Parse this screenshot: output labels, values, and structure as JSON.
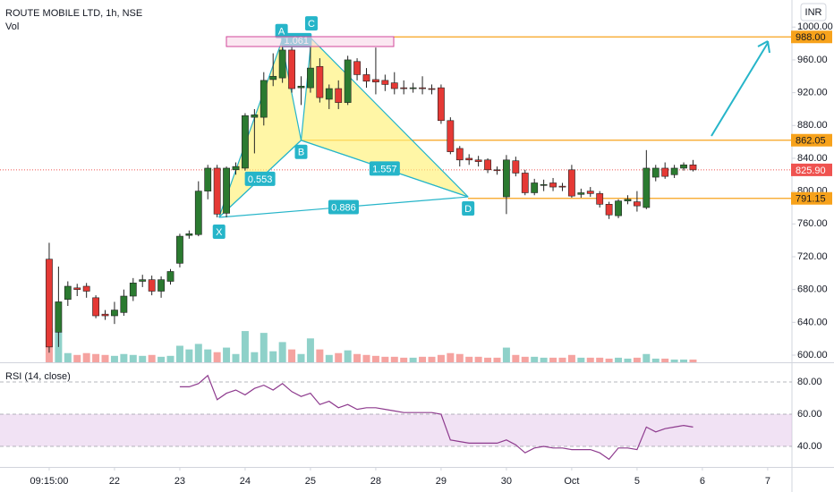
{
  "chart_data": {
    "type": "candlestick",
    "title": "ROUTE MOBILE LTD, 1h, NSE",
    "currency": "INR",
    "volume_label": "Vol",
    "up_color": "#2b7a30",
    "down_color": "#e53935",
    "volume_up_color": "#8fd1c9",
    "volume_down_color": "#f5a3a0",
    "open": [
      717,
      628,
      668,
      682,
      684,
      670,
      650,
      648,
      652,
      672,
      690,
      692,
      678,
      690,
      712,
      746,
      747,
      800,
      828,
      773,
      826,
      828,
      890,
      890,
      936,
      938,
      972,
      926,
      926,
      952,
      912,
      925,
      908,
      958,
      942,
      936,
      935,
      932,
      926,
      925,
      926,
      925,
      926,
      886,
      852,
      840,
      838,
      838,
      826,
      793,
      837,
      822,
      798,
      808,
      810,
      806,
      826,
      796,
      800,
      797,
      784,
      770,
      788,
      787,
      780,
      817,
      828,
      820,
      828,
      832
    ],
    "high": [
      737,
      708,
      690,
      687,
      688,
      673,
      655,
      665,
      680,
      694,
      698,
      697,
      696,
      705,
      748,
      752,
      812,
      832,
      832,
      830,
      835,
      895,
      900,
      945,
      968,
      985,
      985,
      940,
      992,
      962,
      930,
      935,
      965,
      962,
      950,
      975,
      942,
      945,
      935,
      932,
      940,
      930,
      930,
      890,
      855,
      845,
      843,
      840,
      830,
      844,
      842,
      826,
      815,
      814,
      816,
      810,
      832,
      803,
      805,
      800,
      787,
      790,
      795,
      800,
      850,
      832,
      835,
      832,
      835,
      838
    ],
    "low": [
      603,
      610,
      660,
      672,
      670,
      645,
      643,
      638,
      648,
      666,
      683,
      673,
      670,
      686,
      707,
      742,
      745,
      790,
      768,
      768,
      820,
      825,
      846,
      880,
      928,
      932,
      920,
      905,
      920,
      908,
      900,
      900,
      905,
      935,
      926,
      918,
      922,
      918,
      918,
      920,
      918,
      918,
      882,
      845,
      830,
      832,
      830,
      822,
      820,
      772,
      818,
      795,
      795,
      800,
      800,
      800,
      792,
      792,
      793,
      780,
      766,
      767,
      784,
      775,
      778,
      812,
      815,
      816,
      825,
      824
    ],
    "close": [
      610,
      665,
      684,
      680,
      678,
      648,
      648,
      655,
      672,
      688,
      692,
      678,
      692,
      702,
      745,
      748,
      800,
      828,
      772,
      828,
      830,
      892,
      893,
      935,
      940,
      972,
      925,
      928,
      950,
      914,
      925,
      908,
      960,
      942,
      934,
      933,
      930,
      925,
      925,
      926,
      925,
      924,
      886,
      848,
      838,
      838,
      836,
      826,
      825,
      838,
      822,
      798,
      810,
      808,
      805,
      805,
      794,
      798,
      797,
      784,
      771,
      788,
      790,
      782,
      828,
      828,
      818,
      828,
      832,
      825.9
    ],
    "volume": [
      37,
      33,
      10,
      8,
      10,
      9,
      8,
      7,
      9,
      8,
      7,
      8,
      6,
      7,
      18,
      14,
      20,
      14,
      11,
      16,
      9,
      34,
      11,
      32,
      12,
      22,
      14,
      9,
      26,
      14,
      8,
      10,
      13,
      9,
      8,
      7,
      6,
      6,
      5,
      5,
      6,
      6,
      8,
      10,
      9,
      6,
      6,
      5,
      5,
      16,
      8,
      6,
      6,
      5,
      5,
      5,
      8,
      5,
      5,
      5,
      4,
      5,
      4,
      5,
      9,
      4,
      4,
      3,
      3,
      3
    ],
    "ylim": [
      591.3,
      1033
    ],
    "yticks": [
      {
        "value": 600,
        "label": "600.00"
      },
      {
        "value": 640,
        "label": "640.00"
      },
      {
        "value": 680,
        "label": "680.00"
      },
      {
        "value": 720,
        "label": "720.00"
      },
      {
        "value": 760,
        "label": "760.00"
      },
      {
        "value": 800,
        "label": "800.00"
      },
      {
        "value": 840,
        "label": "840.00"
      },
      {
        "value": 880,
        "label": "880.00"
      },
      {
        "value": 920,
        "label": "920.00"
      },
      {
        "value": 960,
        "label": "960.00"
      },
      {
        "value": 1000,
        "label": "1000.00"
      }
    ],
    "xlim": [
      -5.27,
      79.6
    ],
    "xticks": [
      {
        "value": 0,
        "label": "09:15:00"
      },
      {
        "value": 7,
        "label": "22"
      },
      {
        "value": 14,
        "label": "23"
      },
      {
        "value": 21,
        "label": "24"
      },
      {
        "value": 28,
        "label": "25"
      },
      {
        "value": 35,
        "label": "28"
      },
      {
        "value": 42,
        "label": "29"
      },
      {
        "value": 49,
        "label": "30"
      },
      {
        "value": 56,
        "label": "Oct"
      },
      {
        "value": 63,
        "label": "5"
      },
      {
        "value": 70,
        "label": "6"
      },
      {
        "value": 77,
        "label": "7"
      }
    ],
    "price_lines": [
      {
        "value": 988,
        "label": "988.00",
        "color": "#f7a21b"
      },
      {
        "value": 862.05,
        "label": "862.05",
        "color": "#f7a21b"
      },
      {
        "value": 791.15,
        "label": "791.15",
        "color": "#f7a21b"
      }
    ],
    "last_price": {
      "value": 825.9,
      "label": "825.90",
      "color": "#ef5350"
    },
    "pattern": {
      "color": "#26b5c9",
      "fill": "#fff176",
      "points": [
        {
          "label": "X",
          "x": 18.2,
          "y": 768
        },
        {
          "label": "A",
          "x": 24.9,
          "y": 982
        },
        {
          "label": "B",
          "x": 27.0,
          "y": 862
        },
        {
          "label": "C",
          "x": 28.1,
          "y": 986
        },
        {
          "label": "D",
          "x": 44.9,
          "y": 793
        }
      ],
      "ratios": [
        "0.553",
        "1.061",
        "1.557",
        "0.886"
      ]
    },
    "rsi": {
      "label": "RSI (14, close)",
      "color": "#8e3b8e",
      "values": [
        null,
        null,
        null,
        null,
        null,
        null,
        null,
        null,
        null,
        null,
        null,
        null,
        null,
        null,
        77,
        77,
        79,
        84,
        69,
        73,
        75,
        72,
        76,
        78,
        75,
        79,
        74,
        71,
        73,
        66,
        68,
        64,
        66,
        63,
        64,
        64,
        63,
        62,
        61,
        61,
        61,
        61,
        60,
        44,
        43,
        42,
        42,
        42,
        42,
        44,
        41,
        36,
        39,
        40,
        39,
        39,
        38,
        38,
        38,
        36,
        32,
        39,
        39,
        38,
        52,
        49,
        51,
        52,
        53,
        52
      ],
      "ylim": [
        27.2,
        91.1
      ],
      "yticks": [
        {
          "value": 40,
          "label": "40.00"
        },
        {
          "value": 60,
          "label": "60.00"
        },
        {
          "value": 80,
          "label": "80.00"
        }
      ],
      "band": [
        40,
        60
      ]
    }
  }
}
